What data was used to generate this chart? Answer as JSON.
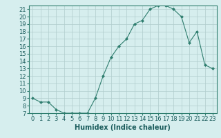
{
  "x": [
    0,
    1,
    2,
    3,
    4,
    5,
    6,
    7,
    8,
    9,
    10,
    11,
    12,
    13,
    14,
    15,
    16,
    17,
    18,
    19,
    20,
    21,
    22,
    23
  ],
  "y": [
    9,
    8.5,
    8.5,
    7.5,
    7,
    7,
    7,
    7,
    9,
    12,
    14.5,
    16,
    17,
    19,
    19.5,
    21,
    21.5,
    21.5,
    21,
    20,
    16.5,
    18,
    13.5,
    13
  ],
  "line_color": "#2e7d6e",
  "marker": "D",
  "marker_size": 2,
  "background_color": "#d6eeee",
  "grid_color": "#b0cccc",
  "xlabel": "Humidex (Indice chaleur)",
  "xlim": [
    -0.5,
    23.5
  ],
  "ylim": [
    7,
    21.5
  ],
  "yticks": [
    7,
    8,
    9,
    10,
    11,
    12,
    13,
    14,
    15,
    16,
    17,
    18,
    19,
    20,
    21
  ],
  "xticks": [
    0,
    1,
    2,
    3,
    4,
    5,
    6,
    7,
    8,
    9,
    10,
    11,
    12,
    13,
    14,
    15,
    16,
    17,
    18,
    19,
    20,
    21,
    22,
    23
  ],
  "tick_fontsize": 6,
  "label_fontsize": 7
}
